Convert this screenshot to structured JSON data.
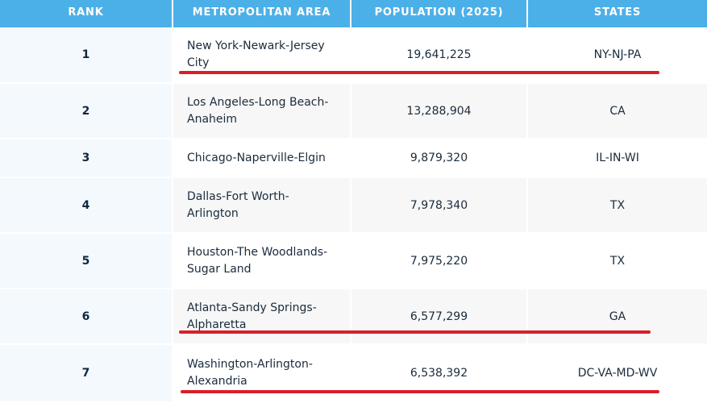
{
  "headers": {
    "rank": "RANK",
    "metro": "METROPOLITAN AREA",
    "population": "POPULATION (2025)",
    "states": "STATES"
  },
  "rows": [
    {
      "rank": "1",
      "metro": "New York-Newark-Jersey City",
      "population": "19,641,225",
      "states": "NY-NJ-PA",
      "underlined": true
    },
    {
      "rank": "2",
      "metro": "Los Angeles-Long Beach-Anaheim",
      "population": "13,288,904",
      "states": "CA",
      "underlined": false
    },
    {
      "rank": "3",
      "metro": "Chicago-Naperville-Elgin",
      "population": "9,879,320",
      "states": "IL-IN-WI",
      "underlined": false
    },
    {
      "rank": "4",
      "metro": "Dallas-Fort Worth-Arlington",
      "population": "7,978,340",
      "states": "TX",
      "underlined": false
    },
    {
      "rank": "5",
      "metro": "Houston-The Woodlands-Sugar Land",
      "population": "7,975,220",
      "states": "TX",
      "underlined": false
    },
    {
      "rank": "6",
      "metro": "Atlanta-Sandy Springs-Alpharetta",
      "population": "6,577,299",
      "states": "GA",
      "underlined": true
    },
    {
      "rank": "7",
      "metro": "Washington-Arlington-Alexandria",
      "population": "6,538,392",
      "states": "DC-VA-MD-WV",
      "underlined": true
    }
  ],
  "colors": {
    "header_bg": "#4cb0e8",
    "underline": "#d81f2a"
  }
}
